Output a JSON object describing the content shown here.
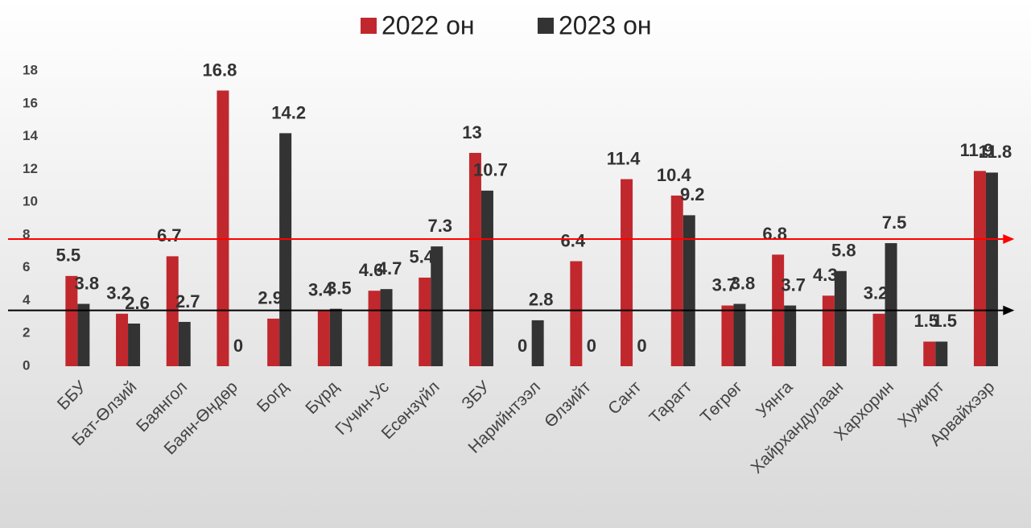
{
  "chart_data": {
    "type": "bar",
    "categories": [
      "ББУ",
      "Бат-Өлзий",
      "Баянгол",
      "Баян-Өндөр",
      "Богд",
      "Бүрд",
      "Гучин-Ус",
      "Есөнзүйл",
      "ЗБУ",
      "Нарийнтээл",
      "Өлзийт",
      "Сант",
      "Тарагт",
      "Төгрөг",
      "Уянга",
      "Хайрхандулаан",
      "Хархорин",
      "Хужирт",
      "Арвайхээр"
    ],
    "series": [
      {
        "name": "2022 он",
        "color": "#c0282d",
        "values": [
          5.5,
          3.2,
          6.7,
          16.8,
          2.9,
          3.4,
          4.6,
          5.4,
          13,
          0,
          6.4,
          11.4,
          10.4,
          3.7,
          6.8,
          4.3,
          3.2,
          1.5,
          11.9
        ]
      },
      {
        "name": "2023 он",
        "color": "#333333",
        "values": [
          3.8,
          2.6,
          2.7,
          0,
          14.2,
          3.5,
          4.7,
          7.3,
          10.7,
          2.8,
          0,
          0,
          9.2,
          3.8,
          3.7,
          5.8,
          7.5,
          1.5,
          11.8
        ]
      }
    ],
    "reference_lines": [
      {
        "value": 7.75,
        "color": "#ff0000"
      },
      {
        "value": 3.4,
        "color": "#000000"
      }
    ],
    "ylim": [
      0,
      18
    ],
    "yticks": [
      0,
      2,
      4,
      6,
      8,
      10,
      12,
      14,
      16,
      18
    ],
    "legend": "top"
  }
}
